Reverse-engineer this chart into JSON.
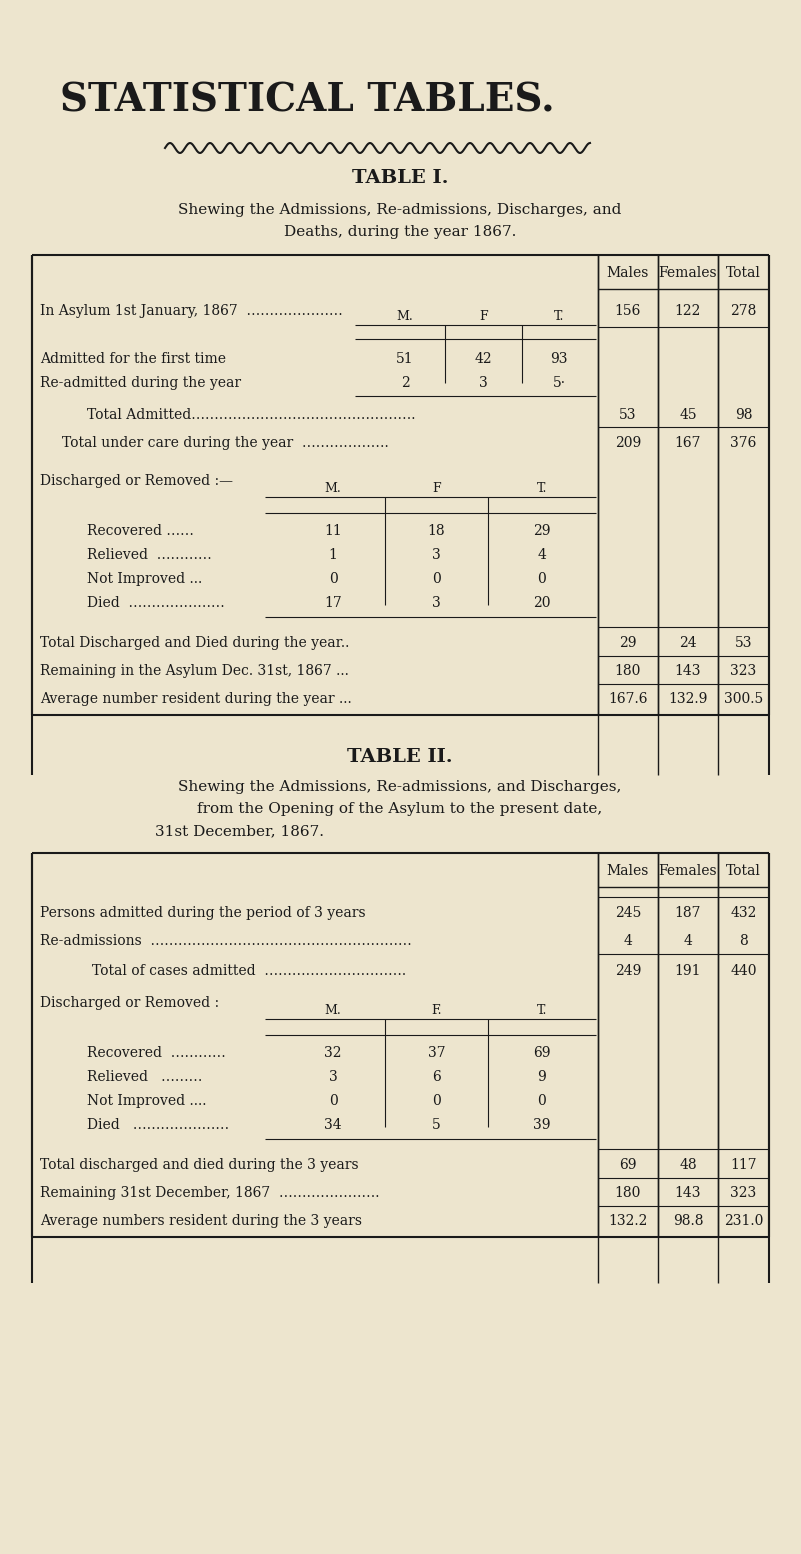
{
  "bg_color": "#ede5ce",
  "text_color": "#1a1a1a",
  "main_title": "STATISTICAL TABLES.",
  "table1_title": "TABLE I.",
  "table1_subtitle1": "Shewing the Admissions, Re-admissions, Discharges, and",
  "table1_subtitle2": "Deaths, during the year 1867.",
  "table2_title": "TABLE II.",
  "table2_subtitle1": "Shewing the Admissions, Re-admissions, and Discharges,",
  "table2_subtitle2": "from the Opening of the Asylum to the present date,",
  "table2_subtitle3": "31st December, 1867."
}
